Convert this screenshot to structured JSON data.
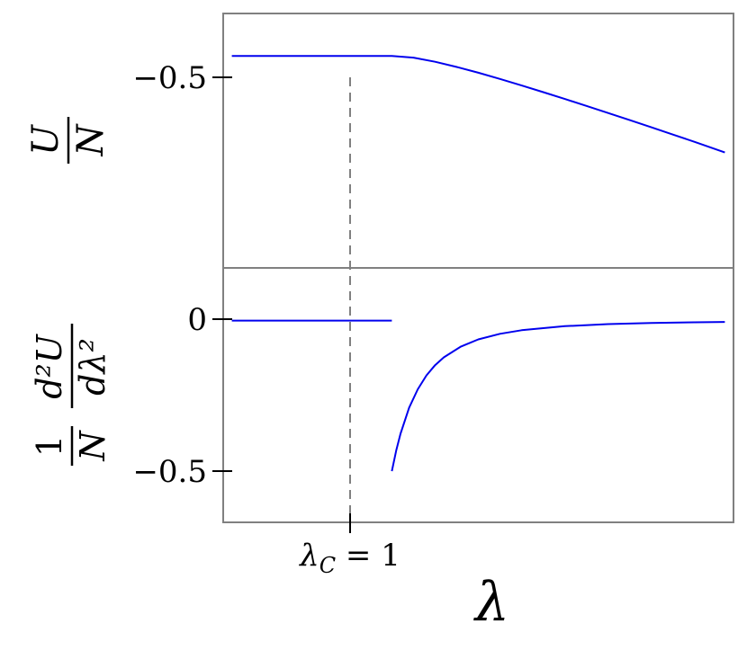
{
  "colors": {
    "curve": "#0000ee",
    "axes": "#808080",
    "marker": "#808080",
    "text": "#000000"
  },
  "chart_data": [
    {
      "type": "line",
      "panel": "top",
      "ylabel": {
        "numerator": "U",
        "denominator": "N"
      },
      "yticks": [
        {
          "value": -0.5,
          "label": "−0.5"
        }
      ],
      "ylim": [
        -0.875,
        -0.425
      ],
      "xlim": [
        -0.95,
        4.95
      ],
      "series": [
        {
          "color": "#0000ee",
          "x": [
            -0.85,
            0.0,
            0.5,
            1.0,
            1.25,
            1.5,
            1.75,
            2.0,
            2.25,
            2.5,
            2.75,
            3.0,
            3.25,
            3.5,
            3.75,
            4.0,
            4.25,
            4.5,
            4.85
          ],
          "y": [
            -0.5,
            -0.5,
            -0.5,
            -0.5,
            -0.5031,
            -0.5104,
            -0.5196,
            -0.5298,
            -0.5408,
            -0.5523,
            -0.5641,
            -0.5762,
            -0.5885,
            -0.601,
            -0.6136,
            -0.6263,
            -0.6392,
            -0.6521,
            -0.6709
          ]
        }
      ]
    },
    {
      "type": "line",
      "panel": "bottom",
      "ylabel": {
        "prefix_num": "1",
        "prefix_den": "N",
        "numerator": "d²U",
        "denominator": "dλ²"
      },
      "yticks": [
        {
          "value": 0,
          "label": "0"
        },
        {
          "value": -0.5,
          "label": "−0.5"
        }
      ],
      "ylim": [
        -0.67,
        0.175
      ],
      "xlim": [
        -0.95,
        4.95
      ],
      "xticks": [
        {
          "value": 1,
          "label": "λC = 1",
          "main": "λ",
          "sub": "C",
          "rest": " = 1"
        }
      ],
      "xlabel": "λ",
      "series": [
        {
          "color": "#0000ee",
          "x": [
            -0.85,
            1.0
          ],
          "y": [
            0,
            0
          ]
        },
        {
          "color": "#0000ee",
          "x": [
            1.0,
            1.05,
            1.1,
            1.2,
            1.3,
            1.4,
            1.5,
            1.6,
            1.8,
            2.0,
            2.25,
            2.5,
            3.0,
            3.5,
            4.0,
            4.5,
            4.85
          ],
          "y": [
            -0.5,
            -0.432,
            -0.376,
            -0.289,
            -0.228,
            -0.182,
            -0.148,
            -0.122,
            -0.086,
            -0.0625,
            -0.0439,
            -0.032,
            -0.0185,
            -0.0117,
            -0.0078,
            -0.0055,
            -0.0044
          ]
        }
      ],
      "critical_line": {
        "x": 1.0
      }
    }
  ]
}
